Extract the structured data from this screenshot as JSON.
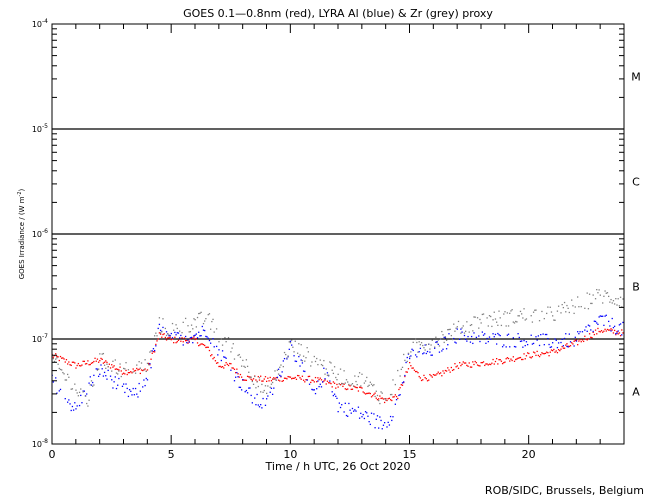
{
  "chart_data": {
    "type": "scatter",
    "title": "GOES 0.1—0.8nm (red), LYRA Al (blue) & Zr (grey) proxy",
    "xlabel": "Time / h UTC, 26 Oct 2020",
    "ylabel": "GOES Irradiance / (W m",
    "ylabel_sup": "-2",
    "ylabel_end": ")",
    "xlim": [
      0,
      24
    ],
    "ylim": [
      1e-08,
      0.0001
    ],
    "yscale": "log",
    "x_ticks": [
      "0",
      "5",
      "10",
      "15",
      "20"
    ],
    "x_tick_values": [
      0,
      5,
      10,
      15,
      20
    ],
    "y_ticks": [
      {
        "base": "10",
        "exp": "-4",
        "value": 0.0001
      },
      {
        "base": "10",
        "exp": "-5",
        "value": 1e-05
      },
      {
        "base": "10",
        "exp": "-6",
        "value": 1e-06
      },
      {
        "base": "10",
        "exp": "-7",
        "value": 1e-07
      },
      {
        "base": "10",
        "exp": "-8",
        "value": 1e-08
      }
    ],
    "threshold_lines": [
      1e-05,
      1e-06,
      1e-07
    ],
    "flare_classes": [
      {
        "label": "M",
        "value": 3.16e-05
      },
      {
        "label": "C",
        "value": 3.16e-06
      },
      {
        "label": "B",
        "value": 3.16e-07
      },
      {
        "label": "A",
        "value": 3.16e-08
      }
    ],
    "series": [
      {
        "name": "GOES 0.1-0.8nm",
        "color": "#ff0000",
        "x": [
          0,
          1,
          2,
          3,
          4,
          4.5,
          5,
          6,
          6.5,
          7,
          7.5,
          8,
          9,
          10,
          11,
          12,
          13,
          14,
          14.5,
          15,
          15.5,
          16,
          17,
          18,
          19,
          20,
          21,
          22,
          23,
          24
        ],
        "values": [
          7e-08,
          5.6e-08,
          6.3e-08,
          4.9e-08,
          5.1e-08,
          1.1e-07,
          9.8e-08,
          9.8e-08,
          8.2e-08,
          5.6e-08,
          5.6e-08,
          4.3e-08,
          4.1e-08,
          4.3e-08,
          4.1e-08,
          3.6e-08,
          3.3e-08,
          2.6e-08,
          2.9e-08,
          5.6e-08,
          4.3e-08,
          4.3e-08,
          5.6e-08,
          5.9e-08,
          6.3e-08,
          7e-08,
          7.5e-08,
          9.2e-08,
          1.22e-07,
          1.14e-07
        ]
      },
      {
        "name": "LYRA Al proxy",
        "color": "#0000ff",
        "x": [
          0,
          1,
          1.5,
          2,
          3,
          3.5,
          4,
          4.5,
          5,
          6,
          6.5,
          7,
          7.5,
          8,
          8.5,
          9,
          9.5,
          10,
          10.5,
          11,
          11.5,
          12,
          13,
          14,
          14.5,
          15,
          16,
          17,
          18,
          19,
          20,
          21,
          22,
          23,
          24
        ],
        "values": [
          4.1e-08,
          2.1e-08,
          3.6e-08,
          5.1e-08,
          3.3e-08,
          2.9e-08,
          4.5e-08,
          1.22e-07,
          9.8e-08,
          1.09e-07,
          1.22e-07,
          7.9e-08,
          5.1e-08,
          3.6e-08,
          2.6e-08,
          2.35e-08,
          4.5e-08,
          8.8e-08,
          5.1e-08,
          2.9e-08,
          5.1e-08,
          2.35e-08,
          1.9e-08,
          1.5e-08,
          2.6e-08,
          7e-08,
          7.9e-08,
          1.09e-07,
          1.02e-07,
          9.8e-08,
          9.8e-08,
          9.4e-08,
          9.8e-08,
          1.52e-07,
          1.22e-07
        ]
      },
      {
        "name": "LYRA Zr proxy",
        "color": "#808080",
        "x": [
          0,
          1,
          1.5,
          2,
          3,
          4,
          4.5,
          5,
          6,
          6.5,
          7,
          8,
          9,
          10,
          11,
          12,
          13,
          14,
          15,
          16,
          17,
          18,
          19,
          20,
          21,
          22,
          23,
          24
        ],
        "values": [
          6.3e-08,
          3.3e-08,
          2.6e-08,
          6.3e-08,
          5.1e-08,
          5.6e-08,
          1.36e-07,
          1.22e-07,
          1.45e-07,
          1.58e-07,
          1.09e-07,
          6.3e-08,
          2.9e-08,
          8.8e-08,
          6.3e-08,
          4.5e-08,
          4.1e-08,
          2.6e-08,
          7.9e-08,
          9.8e-08,
          1.22e-07,
          1.52e-07,
          1.58e-07,
          1.7e-07,
          1.7e-07,
          2.1e-07,
          2.6e-07,
          2.35e-07
        ]
      }
    ]
  },
  "footer": {
    "credit": "ROB/SIDC, Brussels, Belgium"
  }
}
